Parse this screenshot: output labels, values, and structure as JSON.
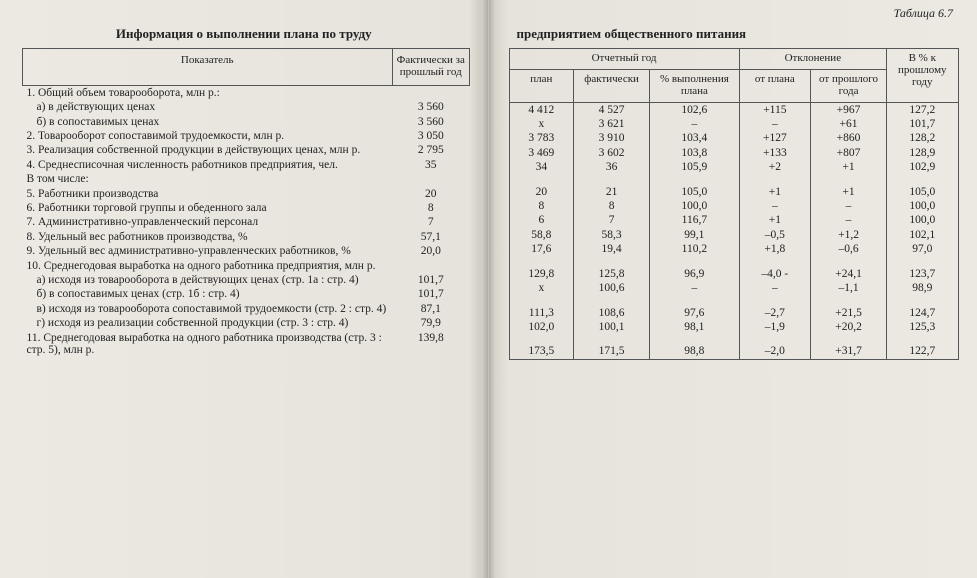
{
  "table_number": "Таблица 6.7",
  "title_left": "Информация о выполнении плана по труду",
  "title_right": "предприятием общественного питания",
  "left_table": {
    "header": {
      "c1": "Показатель",
      "c2": "Фактически за прошлый год"
    },
    "rows": [
      {
        "c1": "1. Общий объем товарооборота, млн р.:",
        "c2": ""
      },
      {
        "c1": "а) в действующих ценах",
        "c2": "3 560",
        "indent": true
      },
      {
        "c1": "б) в сопоставимых ценах",
        "c2": "3 560",
        "indent": true
      },
      {
        "c1": "2. Товарооборот сопоставимой трудоемкости, млн р.",
        "c2": "3 050"
      },
      {
        "c1": "3. Реализация собственной продукции в действующих ценах, млн р.",
        "c2": "2 795"
      },
      {
        "c1": "4. Среднесписочная численность работников предприятия, чел.",
        "c2": "35"
      },
      {
        "c1": "В том числе:",
        "c2": ""
      },
      {
        "c1": "5. Работники производства",
        "c2": "20"
      },
      {
        "c1": "6. Работники торговой группы и обеденного зала",
        "c2": "8"
      },
      {
        "c1": "7. Административно-управленческий персонал",
        "c2": "7"
      },
      {
        "c1": "8. Удельный вес работников производства, %",
        "c2": "57,1"
      },
      {
        "c1": "9. Удельный вес административно-управленческих работников, %",
        "c2": "20,0"
      },
      {
        "c1": "10. Среднегодовая выработка на одного работника предприятия, млн р.",
        "c2": ""
      },
      {
        "c1": "а) исходя из товарооборота в действующих ценах (стр. 1а : стр. 4)",
        "c2": "101,7",
        "indent": true
      },
      {
        "c1": "б) в сопоставимых ценах (стр. 1б : стр. 4)",
        "c2": "101,7",
        "indent": true
      },
      {
        "c1": "в) исходя из товарооборота сопоставимой трудоемкости (стр. 2 : стр. 4)",
        "c2": "87,1",
        "indent": true
      },
      {
        "c1": "г) исходя из реализации собственной продукции (стр. 3 : стр. 4)",
        "c2": "79,9",
        "indent": true
      },
      {
        "c1": "11. Среднегодовая выработка на одного работника производства (стр. 3 : стр. 5), млн р.",
        "c2": "139,8"
      }
    ]
  },
  "right_table": {
    "header": {
      "grp1": "Отчетный год",
      "grp1a": "план",
      "grp1b": "фактически",
      "grp1c": "% выполнения плана",
      "grp2": "Отклонение",
      "grp2a": "от плана",
      "grp2b": "от прошлого года",
      "c6": "В % к прошлому году"
    },
    "rows": [
      [
        "4 412",
        "4 527",
        "102,6",
        "+115",
        "+967",
        "127,2"
      ],
      [
        "x",
        "3 621",
        "–",
        "–",
        "+61",
        "101,7"
      ],
      [
        "3 783",
        "3 910",
        "103,4",
        "+127",
        "+860",
        "128,2"
      ],
      [
        "3 469",
        "3 602",
        "103,8",
        "+133",
        "+807",
        "128,9"
      ],
      [
        "34",
        "36",
        "105,9",
        "+2",
        "+1",
        "102,9"
      ],
      [
        "",
        "",
        "",
        "",
        "",
        ""
      ],
      [
        "20",
        "21",
        "105,0",
        "+1",
        "+1",
        "105,0"
      ],
      [
        "8",
        "8",
        "100,0",
        "–",
        "–",
        "100,0"
      ],
      [
        "6",
        "7",
        "116,7",
        "+1",
        "–",
        "100,0"
      ],
      [
        "58,8",
        "58,3",
        "99,1",
        "–0,5",
        "+1,2",
        "102,1"
      ],
      [
        "17,6",
        "19,4",
        "110,2",
        "+1,8",
        "–0,6",
        "97,0"
      ],
      [
        "",
        "",
        "",
        "",
        "",
        ""
      ],
      [
        "129,8",
        "125,8",
        "96,9",
        "–4,0 -",
        "+24,1",
        "123,7"
      ],
      [
        "x",
        "100,6",
        "–",
        "–",
        "–1,1",
        "98,9"
      ],
      [
        "",
        "",
        "",
        "",
        "",
        ""
      ],
      [
        "111,3",
        "108,6",
        "97,6",
        "–2,7",
        "+21,5",
        "124,7"
      ],
      [
        "102,0",
        "100,1",
        "98,1",
        "–1,9",
        "+20,2",
        "125,3"
      ],
      [
        "",
        "",
        "",
        "",
        "",
        ""
      ],
      [
        "173,5",
        "171,5",
        "98,8",
        "–2,0",
        "+31,7",
        "122,7"
      ]
    ]
  },
  "colors": {
    "text": "#222222",
    "rule": "#555555",
    "paper": "#e8e5de"
  },
  "font": {
    "family": "Times New Roman",
    "body_pt": 11.5,
    "header_pt": 11,
    "title_pt": 13
  }
}
